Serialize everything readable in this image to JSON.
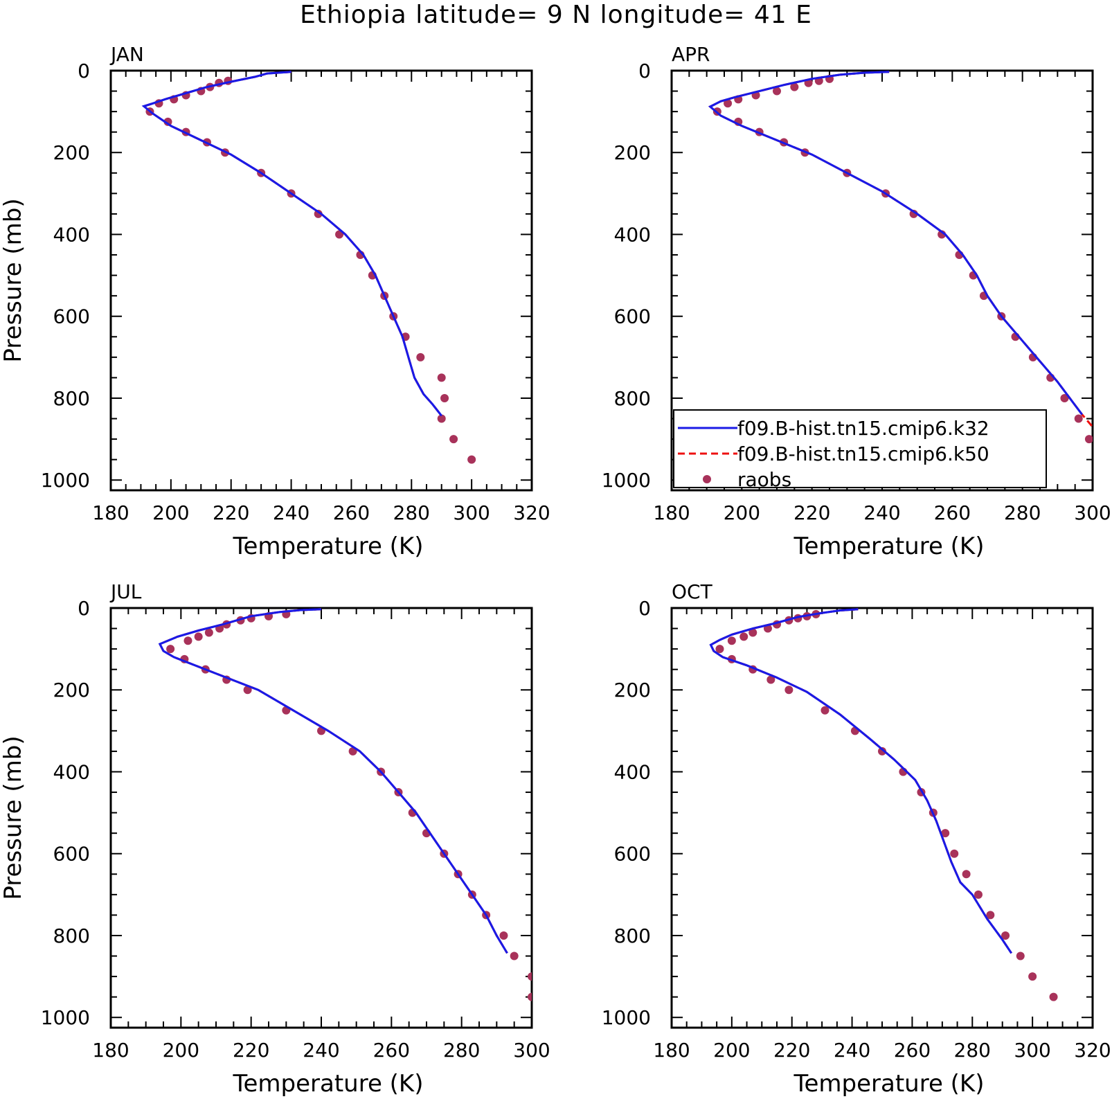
{
  "title": "Ethiopia  latitude= 9 N longitude= 41 E",
  "colors": {
    "k32": "#1a1ae6",
    "k50": "#ee1111",
    "raobs": "#a8325a"
  },
  "legend": {
    "placement": "lower-left of APR panel",
    "items": [
      {
        "label": "f09.B-hist.tn15.cmip6.k32",
        "style": "solid-line",
        "color": "#1a1ae6"
      },
      {
        "label": "f09.B-hist.tn15.cmip6.k50",
        "style": "dashed-line",
        "color": "#ee1111"
      },
      {
        "label": "raobs",
        "style": "dot",
        "color": "#a8325a"
      }
    ]
  },
  "chart_data": [
    {
      "type": "line",
      "title": "JAN",
      "xlabel": "Temperature (K)",
      "ylabel": "Pressure (mb)",
      "xlim": [
        180,
        320
      ],
      "ylim": [
        1025,
        0
      ],
      "xticks": [
        180,
        200,
        220,
        240,
        260,
        280,
        300,
        320
      ],
      "yticks": [
        0,
        200,
        400,
        600,
        800,
        1000
      ],
      "series": [
        {
          "name": "f09.B-hist.tn15.cmip6.k32",
          "style": "solid",
          "x": [
            240,
            232,
            228,
            220,
            212,
            205,
            198,
            194,
            191,
            194,
            200,
            210,
            220,
            230,
            240,
            250,
            258,
            264,
            268,
            271,
            274,
            277,
            279,
            281,
            284,
            287,
            290
          ],
          "y": [
            3,
            7,
            15,
            27,
            40,
            55,
            70,
            80,
            87,
            105,
            135,
            170,
            205,
            250,
            300,
            350,
            400,
            450,
            500,
            550,
            600,
            650,
            700,
            750,
            790,
            815,
            843
          ]
        },
        {
          "name": "f09.B-hist.tn15.cmip6.k50",
          "style": "dashed",
          "x": [
            240,
            232,
            228,
            220,
            212,
            205,
            198,
            194,
            191,
            194,
            200,
            210,
            220,
            230,
            240,
            250,
            258,
            264,
            268,
            271,
            274,
            277,
            279,
            281,
            284,
            287,
            290
          ],
          "y": [
            3,
            7,
            15,
            27,
            40,
            55,
            70,
            80,
            87,
            105,
            135,
            170,
            205,
            250,
            300,
            350,
            400,
            450,
            500,
            550,
            600,
            650,
            700,
            750,
            790,
            815,
            843
          ]
        },
        {
          "name": "raobs",
          "style": "points",
          "x": [
            219,
            216,
            213,
            210,
            205,
            201,
            196,
            193,
            199,
            205,
            212,
            218,
            230,
            240,
            249,
            256,
            263,
            267,
            271,
            274,
            278,
            283,
            290,
            291,
            290,
            294,
            300
          ],
          "y": [
            25,
            30,
            40,
            50,
            60,
            70,
            80,
            100,
            125,
            150,
            175,
            200,
            250,
            300,
            350,
            400,
            450,
            500,
            550,
            600,
            650,
            700,
            750,
            800,
            850,
            900,
            950
          ]
        }
      ]
    },
    {
      "type": "line",
      "title": "APR",
      "xlabel": "Temperature (K)",
      "ylabel": "",
      "xlim": [
        180,
        300
      ],
      "ylim": [
        1025,
        0
      ],
      "xticks": [
        180,
        200,
        220,
        240,
        260,
        280,
        300
      ],
      "yticks": [
        0,
        200,
        400,
        600,
        800,
        1000
      ],
      "series": [
        {
          "name": "f09.B-hist.tn15.cmip6.k32",
          "style": "solid",
          "x": [
            242,
            235,
            228,
            220,
            212,
            205,
            198,
            194,
            191,
            194,
            200,
            210,
            220,
            230,
            240,
            250,
            258,
            263,
            267,
            270,
            274,
            279,
            284,
            290,
            297
          ],
          "y": [
            3,
            5,
            10,
            20,
            35,
            50,
            65,
            75,
            88,
            110,
            135,
            170,
            205,
            250,
            295,
            350,
            400,
            450,
            500,
            550,
            600,
            650,
            700,
            760,
            840
          ]
        },
        {
          "name": "f09.B-hist.tn15.cmip6.k50",
          "style": "dashed",
          "x": [
            242,
            235,
            228,
            220,
            212,
            205,
            198,
            194,
            191,
            194,
            200,
            210,
            220,
            230,
            240,
            250,
            258,
            263,
            267,
            270,
            274,
            279,
            284,
            290,
            297,
            300
          ],
          "y": [
            3,
            5,
            10,
            20,
            35,
            50,
            65,
            75,
            88,
            110,
            135,
            170,
            205,
            250,
            295,
            350,
            400,
            450,
            500,
            550,
            600,
            650,
            700,
            760,
            840,
            870
          ]
        },
        {
          "name": "raobs",
          "style": "points",
          "x": [
            225,
            222,
            219,
            215,
            210,
            204,
            199,
            196,
            193,
            199,
            205,
            212,
            218,
            230,
            241,
            249,
            257,
            262,
            266,
            269,
            274,
            278,
            283,
            288,
            292,
            296,
            299
          ],
          "y": [
            20,
            25,
            30,
            40,
            50,
            60,
            70,
            80,
            100,
            125,
            150,
            175,
            200,
            250,
            300,
            350,
            400,
            450,
            500,
            550,
            600,
            650,
            700,
            750,
            800,
            850,
            900
          ]
        }
      ]
    },
    {
      "type": "line",
      "title": "JUL",
      "xlabel": "Temperature (K)",
      "ylabel": "Pressure (mb)",
      "xlim": [
        180,
        300
      ],
      "ylim": [
        1025,
        0
      ],
      "xticks": [
        180,
        200,
        220,
        240,
        260,
        280,
        300
      ],
      "yticks": [
        0,
        200,
        400,
        600,
        800,
        1000
      ],
      "series": [
        {
          "name": "f09.B-hist.tn15.cmip6.k32",
          "style": "solid",
          "x": [
            240,
            234,
            228,
            220,
            212,
            205,
            199,
            194,
            195,
            198,
            210,
            222,
            232,
            242,
            251,
            257,
            262,
            267,
            271,
            275,
            279,
            283,
            287,
            290,
            293
          ],
          "y": [
            3,
            5,
            10,
            20,
            40,
            55,
            70,
            88,
            105,
            120,
            160,
            200,
            250,
            300,
            350,
            400,
            450,
            500,
            550,
            600,
            650,
            700,
            750,
            800,
            843
          ]
        },
        {
          "name": "f09.B-hist.tn15.cmip6.k50",
          "style": "dashed",
          "x": [
            240,
            234,
            228,
            220,
            212,
            205,
            199,
            194,
            195,
            198,
            210,
            222,
            232,
            242,
            251,
            257,
            262,
            267,
            271,
            275,
            279,
            283,
            287,
            290,
            293
          ],
          "y": [
            3,
            5,
            10,
            20,
            40,
            55,
            70,
            88,
            105,
            120,
            160,
            200,
            250,
            300,
            350,
            400,
            450,
            500,
            550,
            600,
            650,
            700,
            750,
            800,
            843
          ]
        },
        {
          "name": "raobs",
          "style": "points",
          "x": [
            230,
            225,
            220,
            217,
            213,
            211,
            208,
            205,
            202,
            197,
            201,
            207,
            213,
            219,
            230,
            240,
            249,
            257,
            262,
            266,
            270,
            275,
            279,
            283,
            287,
            292,
            295,
            300,
            300
          ],
          "y": [
            15,
            20,
            25,
            30,
            40,
            50,
            60,
            70,
            80,
            100,
            125,
            150,
            175,
            200,
            250,
            300,
            350,
            400,
            450,
            500,
            550,
            600,
            650,
            700,
            750,
            800,
            850,
            900,
            950
          ]
        }
      ]
    },
    {
      "type": "line",
      "title": "OCT",
      "xlabel": "Temperature (K)",
      "ylabel": "",
      "xlim": [
        180,
        320
      ],
      "ylim": [
        1025,
        0
      ],
      "xticks": [
        180,
        200,
        220,
        240,
        260,
        280,
        300,
        320
      ],
      "yticks": [
        0,
        200,
        400,
        600,
        800,
        1000
      ],
      "series": [
        {
          "name": "f09.B-hist.tn15.cmip6.k32",
          "style": "solid",
          "x": [
            242,
            236,
            230,
            222,
            214,
            207,
            200,
            196,
            193,
            194,
            197,
            205,
            215,
            225,
            236,
            246,
            254,
            261,
            265,
            268,
            270,
            273,
            276,
            280,
            285,
            290,
            293
          ],
          "y": [
            3,
            6,
            12,
            22,
            38,
            50,
            65,
            78,
            90,
            105,
            120,
            140,
            170,
            205,
            260,
            320,
            370,
            420,
            470,
            520,
            560,
            620,
            670,
            700,
            760,
            810,
            843
          ]
        },
        {
          "name": "f09.B-hist.tn15.cmip6.k50",
          "style": "dashed",
          "x": [
            242,
            236,
            230,
            222,
            214,
            207,
            200,
            196,
            193,
            194,
            197,
            205,
            215,
            225,
            236,
            246,
            254,
            261,
            265,
            268,
            270,
            273,
            276,
            280,
            285,
            290,
            293
          ],
          "y": [
            3,
            6,
            12,
            22,
            38,
            50,
            65,
            78,
            90,
            105,
            120,
            140,
            170,
            205,
            260,
            320,
            370,
            420,
            470,
            520,
            560,
            620,
            670,
            700,
            760,
            810,
            843
          ]
        },
        {
          "name": "raobs",
          "style": "points",
          "x": [
            228,
            225,
            222,
            219,
            215,
            212,
            207,
            204,
            200,
            196,
            200,
            207,
            213,
            219,
            231,
            241,
            250,
            257,
            263,
            267,
            271,
            274,
            278,
            282,
            286,
            291,
            296,
            300,
            307
          ],
          "y": [
            15,
            20,
            25,
            30,
            40,
            50,
            60,
            70,
            80,
            100,
            125,
            150,
            175,
            200,
            250,
            300,
            350,
            400,
            450,
            500,
            550,
            600,
            650,
            700,
            750,
            800,
            850,
            900,
            950
          ]
        }
      ]
    }
  ]
}
